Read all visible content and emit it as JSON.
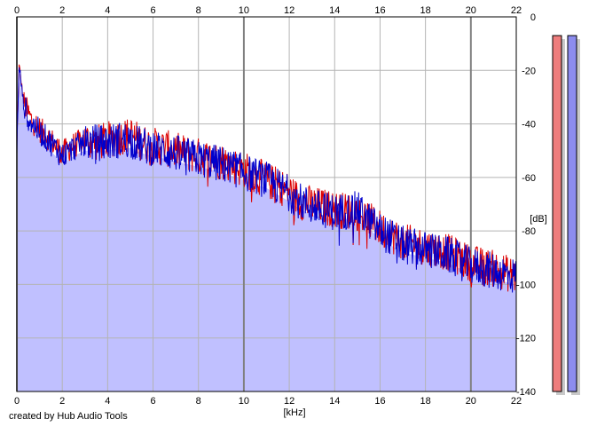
{
  "footer": {
    "credit": "created by Hub Audio Tools"
  },
  "colors": {
    "background": "#ffffff",
    "fill": "#c0c0ff",
    "left_channel": "#dd0000",
    "right_channel": "#0000cc",
    "grid": "#b4b4b4",
    "grid_major": "#808080",
    "meter_left": "#ee7d7d",
    "meter_right": "#8c8cee",
    "meter_shadow": "#c8c8c8"
  },
  "chart_data": {
    "type": "line",
    "title": "",
    "xlabel": "[kHz]",
    "ylabel": "[dB]",
    "xlim": [
      0,
      22
    ],
    "ylim": [
      -140,
      0
    ],
    "x_ticks": [
      0,
      2,
      4,
      6,
      8,
      10,
      12,
      14,
      16,
      18,
      20,
      22
    ],
    "x_tick_labels": [
      "0",
      "2",
      "4",
      "6",
      "8",
      "10",
      "12",
      "14",
      "16",
      "18",
      "20",
      "22"
    ],
    "y_ticks": [
      0,
      -20,
      -40,
      -60,
      -80,
      -100,
      -120,
      -140
    ],
    "y_tick_labels": [
      "0",
      "-20",
      "-40",
      "-60",
      "-80",
      "-100",
      "-120",
      "-140"
    ],
    "grid": true,
    "x": [
      0,
      0.1,
      0.3,
      0.6,
      1,
      1.5,
      2,
      2.5,
      3,
      3.5,
      4,
      4.5,
      5,
      5.5,
      6,
      7,
      8,
      9,
      10,
      11,
      12,
      12.5,
      13,
      14,
      15,
      16,
      17,
      18,
      19,
      20,
      21,
      22
    ],
    "series": [
      {
        "values": [
          -48,
          -18,
          -32,
          -38,
          -42,
          -46,
          -51,
          -48,
          -46,
          -47,
          -46,
          -45,
          -44,
          -47,
          -48,
          -50,
          -52,
          -54,
          -57,
          -61,
          -65,
          -69,
          -70,
          -72,
          -73,
          -79,
          -84,
          -86,
          -88,
          -92,
          -94,
          -97
        ]
      },
      {
        "values": [
          -50,
          -18,
          -33,
          -39,
          -43,
          -47,
          -52,
          -49,
          -47,
          -47,
          -47,
          -46,
          -46,
          -48,
          -49,
          -51,
          -53,
          -55,
          -58,
          -61,
          -66,
          -69,
          -71,
          -73,
          -72,
          -80,
          -85,
          -87,
          -89,
          -93,
          -95,
          -97
        ]
      }
    ],
    "level_meters": [
      {
        "value_db": -7
      },
      {
        "value_db": -7
      }
    ]
  }
}
